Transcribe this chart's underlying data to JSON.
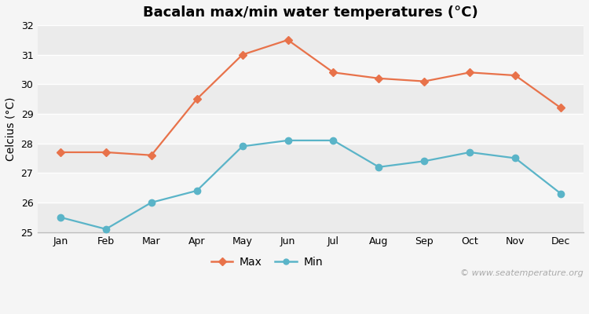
{
  "title": "Bacalan max/min water temperatures (°C)",
  "months": [
    "Jan",
    "Feb",
    "Mar",
    "Apr",
    "May",
    "Jun",
    "Jul",
    "Aug",
    "Sep",
    "Oct",
    "Nov",
    "Dec"
  ],
  "max_temps": [
    27.7,
    27.7,
    27.6,
    29.5,
    31.0,
    31.5,
    30.4,
    30.2,
    30.1,
    30.4,
    30.3,
    29.2
  ],
  "min_temps": [
    25.5,
    25.1,
    26.0,
    26.4,
    27.9,
    28.1,
    28.1,
    27.2,
    27.4,
    27.7,
    27.5,
    26.3
  ],
  "max_color": "#e8724a",
  "min_color": "#5ab4c8",
  "ylim": [
    25,
    32
  ],
  "yticks": [
    25,
    26,
    27,
    28,
    29,
    30,
    31,
    32
  ],
  "ylabel": "Celcius (°C)",
  "background_color": "#f5f5f5",
  "band_colors": [
    "#ebebeb",
    "#f5f5f5"
  ],
  "grid_color": "#ffffff",
  "watermark": "© www.seatemperature.org",
  "legend_max": "Max",
  "legend_min": "Min",
  "title_fontsize": 13,
  "label_fontsize": 10,
  "tick_fontsize": 9,
  "watermark_fontsize": 8
}
